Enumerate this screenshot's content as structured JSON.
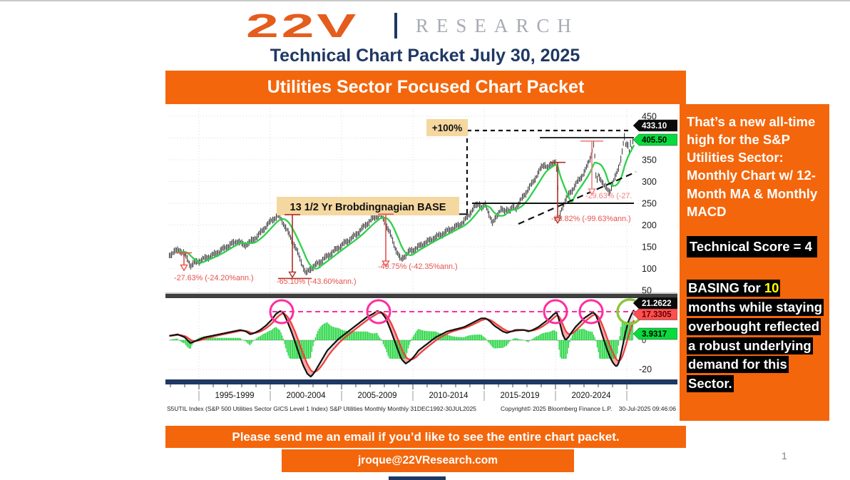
{
  "header": {
    "logo_left": "22V",
    "logo_divider": "|",
    "logo_right": "RESEARCH",
    "packet_title": "Technical Chart Packet July 30, 2025",
    "section_banner": "Utilities Sector Focused Chart Packet"
  },
  "sidebar": {
    "note": "That’s a new all-time high for the S&P Utilities Sector: Monthly Chart w/ 12-Month MA & Monthly MACD",
    "technical_score": "Technical Score = 4",
    "basing_pre": "BASING for ",
    "basing_highlight": "10",
    "basing_post": " months while staying overbought reflected a robust underlying demand for this Sector."
  },
  "footer": {
    "cta": "Please send me an email if you’d like to see the entire chart packet.",
    "email": "jroque@22VResearch.com",
    "page_number": "1"
  },
  "chart_data": {
    "type": "line",
    "description": "S&P 500 Utilities Sector monthly price with 12-month moving average (top panel) and monthly MACD with signal line and green histogram (bottom panel)",
    "price_axis_ticks": [
      450,
      350,
      300,
      250,
      200,
      150,
      100,
      50
    ],
    "macd_axis_ticks": [
      0,
      -20
    ],
    "x_labels": [
      "1995-1999",
      "2000-2004",
      "2005-2009",
      "2010-2014",
      "2015-2019",
      "2020-2024"
    ],
    "x_range": [
      "31DEC1992",
      "30JUL2025"
    ],
    "tags": {
      "last_price": "433.10",
      "ma_12m": "405.50",
      "macd": "21.2622",
      "macd_signal": "17.3305",
      "macd_hist": "3.9317"
    },
    "annotations": {
      "measured_move": "+100%",
      "base_label": "13 1/2 Yr Brobdingnagian BASE",
      "drawdowns": [
        "-27.63% (-24.20%ann.)",
        "-65.10% (-43.60%ann.)",
        "-49.75% (-42.35%ann.)",
        "-38.82% (-99.63%ann.)",
        "-29.63% (-27."
      ],
      "overbought_circles_pink_years": [
        2000.8,
        2007.6,
        2020.0,
        2022.5
      ],
      "breakout_circle_green_year": 2025.2
    },
    "source_line": "S5UTIL Index (S&P 500 Utilities Sector GICS Level 1 Index) S&P Utilities Monthly  Monthly 31DEC1992-30JUL2025",
    "copyright_line": "Copyright© 2025 Bloomberg Finance L.P.",
    "timestamp": "30-Jul-2025 09:46:06",
    "series": {
      "price": [
        [
          1992.92,
          130
        ],
        [
          1993.25,
          139
        ],
        [
          1993.65,
          142
        ],
        [
          1993.95,
          135
        ],
        [
          1994.2,
          120
        ],
        [
          1994.42,
          107
        ],
        [
          1994.75,
          114
        ],
        [
          1995.15,
          119
        ],
        [
          1995.55,
          125
        ],
        [
          1995.95,
          130
        ],
        [
          1996.4,
          139
        ],
        [
          1996.85,
          148
        ],
        [
          1997.3,
          157
        ],
        [
          1997.75,
          163
        ],
        [
          1998.15,
          153
        ],
        [
          1998.55,
          160
        ],
        [
          1998.95,
          170
        ],
        [
          1999.35,
          183
        ],
        [
          1999.75,
          199
        ],
        [
          2000.15,
          212
        ],
        [
          2000.55,
          222
        ],
        [
          2000.8,
          212
        ],
        [
          2001.05,
          196
        ],
        [
          2001.35,
          176
        ],
        [
          2001.65,
          157
        ],
        [
          2001.95,
          134
        ],
        [
          2002.25,
          109
        ],
        [
          2002.5,
          88
        ],
        [
          2002.8,
          99
        ],
        [
          2003.15,
          107
        ],
        [
          2003.55,
          117
        ],
        [
          2003.95,
          127
        ],
        [
          2004.35,
          137
        ],
        [
          2004.75,
          147
        ],
        [
          2005.15,
          157
        ],
        [
          2005.55,
          166
        ],
        [
          2005.95,
          176
        ],
        [
          2006.35,
          189
        ],
        [
          2006.75,
          202
        ],
        [
          2007.15,
          214
        ],
        [
          2007.45,
          220
        ],
        [
          2007.7,
          224
        ],
        [
          2007.95,
          212
        ],
        [
          2008.2,
          196
        ],
        [
          2008.45,
          176
        ],
        [
          2008.7,
          153
        ],
        [
          2008.95,
          134
        ],
        [
          2009.15,
          119
        ],
        [
          2009.45,
          130
        ],
        [
          2009.75,
          139
        ],
        [
          2010.05,
          143
        ],
        [
          2010.4,
          150
        ],
        [
          2010.75,
          157
        ],
        [
          2011.1,
          163
        ],
        [
          2011.45,
          170
        ],
        [
          2011.8,
          175
        ],
        [
          2012.15,
          181
        ],
        [
          2012.5,
          188
        ],
        [
          2012.85,
          193
        ],
        [
          2013.2,
          199
        ],
        [
          2013.55,
          207
        ],
        [
          2013.85,
          220
        ],
        [
          2014.15,
          234
        ],
        [
          2014.45,
          245
        ],
        [
          2014.65,
          250
        ],
        [
          2014.85,
          238
        ],
        [
          2015.05,
          248
        ],
        [
          2015.25,
          235
        ],
        [
          2015.45,
          216
        ],
        [
          2015.6,
          202
        ],
        [
          2015.8,
          216
        ],
        [
          2016.0,
          229
        ],
        [
          2016.2,
          237
        ],
        [
          2016.4,
          229
        ],
        [
          2016.6,
          238
        ],
        [
          2016.8,
          232
        ],
        [
          2017.0,
          242
        ],
        [
          2017.2,
          237
        ],
        [
          2017.4,
          248
        ],
        [
          2017.6,
          258
        ],
        [
          2017.8,
          268
        ],
        [
          2018.0,
          278
        ],
        [
          2018.2,
          288
        ],
        [
          2018.4,
          297
        ],
        [
          2018.6,
          309
        ],
        [
          2018.8,
          320
        ],
        [
          2019.05,
          334
        ],
        [
          2019.25,
          340
        ],
        [
          2019.45,
          330
        ],
        [
          2019.65,
          336
        ],
        [
          2019.85,
          344
        ],
        [
          2020.05,
          348
        ],
        [
          2020.15,
          300
        ],
        [
          2020.25,
          213
        ],
        [
          2020.45,
          240
        ],
        [
          2020.7,
          258
        ],
        [
          2020.95,
          270
        ],
        [
          2021.2,
          282
        ],
        [
          2021.45,
          295
        ],
        [
          2021.7,
          305
        ],
        [
          2021.95,
          318
        ],
        [
          2022.2,
          333
        ],
        [
          2022.45,
          355
        ],
        [
          2022.6,
          375
        ],
        [
          2022.7,
          392
        ],
        [
          2022.78,
          340
        ],
        [
          2022.87,
          295
        ],
        [
          2023.0,
          315
        ],
        [
          2023.2,
          305
        ],
        [
          2023.4,
          290
        ],
        [
          2023.6,
          283
        ],
        [
          2023.8,
          276
        ],
        [
          2024.0,
          295
        ],
        [
          2024.2,
          310
        ],
        [
          2024.4,
          330
        ],
        [
          2024.6,
          355
        ],
        [
          2024.75,
          385
        ],
        [
          2024.85,
          403
        ],
        [
          2024.95,
          375
        ],
        [
          2025.05,
          395
        ],
        [
          2025.15,
          368
        ],
        [
          2025.25,
          390
        ],
        [
          2025.35,
          372
        ],
        [
          2025.45,
          398
        ],
        [
          2025.55,
          433
        ]
      ],
      "macd": [
        [
          1992.92,
          3
        ],
        [
          1993.5,
          4
        ],
        [
          1994.0,
          2
        ],
        [
          1994.4,
          -2
        ],
        [
          1994.9,
          0
        ],
        [
          1995.4,
          2
        ],
        [
          1995.9,
          3
        ],
        [
          1996.4,
          4
        ],
        [
          1996.9,
          5
        ],
        [
          1997.4,
          6
        ],
        [
          1997.9,
          7
        ],
        [
          1998.3,
          6
        ],
        [
          1998.6,
          4
        ],
        [
          1998.9,
          5
        ],
        [
          1999.3,
          7
        ],
        [
          1999.7,
          10
        ],
        [
          2000.1,
          14
        ],
        [
          2000.4,
          18
        ],
        [
          2000.7,
          20
        ],
        [
          2000.9,
          19
        ],
        [
          2001.1,
          15
        ],
        [
          2001.4,
          8
        ],
        [
          2001.7,
          0
        ],
        [
          2002.0,
          -9
        ],
        [
          2002.3,
          -17
        ],
        [
          2002.6,
          -23
        ],
        [
          2002.85,
          -25
        ],
        [
          2003.1,
          -22
        ],
        [
          2003.4,
          -17
        ],
        [
          2003.7,
          -12
        ],
        [
          2004.0,
          -7
        ],
        [
          2004.4,
          -3
        ],
        [
          2004.8,
          1
        ],
        [
          2005.2,
          4
        ],
        [
          2005.6,
          7
        ],
        [
          2006.0,
          10
        ],
        [
          2006.4,
          13
        ],
        [
          2006.8,
          16
        ],
        [
          2007.2,
          18
        ],
        [
          2007.5,
          20
        ],
        [
          2007.8,
          19
        ],
        [
          2008.1,
          15
        ],
        [
          2008.4,
          8
        ],
        [
          2008.7,
          0
        ],
        [
          2009.0,
          -8
        ],
        [
          2009.2,
          -13
        ],
        [
          2009.5,
          -16
        ],
        [
          2009.8,
          -14
        ],
        [
          2010.1,
          -11
        ],
        [
          2010.4,
          -7
        ],
        [
          2010.8,
          -4
        ],
        [
          2011.2,
          -1
        ],
        [
          2011.6,
          2
        ],
        [
          2012.0,
          4
        ],
        [
          2012.4,
          6
        ],
        [
          2012.8,
          7
        ],
        [
          2013.2,
          8
        ],
        [
          2013.6,
          9
        ],
        [
          2014.0,
          11
        ],
        [
          2014.4,
          13
        ],
        [
          2014.8,
          15
        ],
        [
          2015.1,
          15
        ],
        [
          2015.4,
          13
        ],
        [
          2015.7,
          10
        ],
        [
          2016.0,
          8
        ],
        [
          2016.3,
          6
        ],
        [
          2016.6,
          5
        ],
        [
          2016.9,
          6
        ],
        [
          2017.2,
          7
        ],
        [
          2017.5,
          7
        ],
        [
          2017.8,
          7
        ],
        [
          2018.1,
          6
        ],
        [
          2018.4,
          7
        ],
        [
          2018.8,
          9
        ],
        [
          2019.2,
          12
        ],
        [
          2019.6,
          15
        ],
        [
          2019.9,
          18
        ],
        [
          2020.1,
          19
        ],
        [
          2020.3,
          12
        ],
        [
          2020.5,
          4
        ],
        [
          2020.7,
          0
        ],
        [
          2020.9,
          2
        ],
        [
          2021.1,
          5
        ],
        [
          2021.4,
          9
        ],
        [
          2021.7,
          12
        ],
        [
          2022.0,
          15
        ],
        [
          2022.3,
          17
        ],
        [
          2022.6,
          19
        ],
        [
          2022.8,
          18
        ],
        [
          2023.0,
          13
        ],
        [
          2023.2,
          6
        ],
        [
          2023.4,
          0
        ],
        [
          2023.6,
          -6
        ],
        [
          2023.8,
          -11
        ],
        [
          2024.0,
          -15
        ],
        [
          2024.15,
          -17
        ],
        [
          2024.3,
          -18
        ],
        [
          2024.45,
          -15
        ],
        [
          2024.6,
          -9
        ],
        [
          2024.75,
          -2
        ],
        [
          2024.9,
          5
        ],
        [
          2025.05,
          11
        ],
        [
          2025.2,
          15
        ],
        [
          2025.35,
          18
        ],
        [
          2025.45,
          20
        ],
        [
          2025.55,
          21.3
        ]
      ]
    },
    "colors": {
      "orange": "#F4660B",
      "navy": "#1F3864",
      "ma_green": "#2ED04B",
      "hist_green": "#00CF22",
      "tag_green": "#07DC3C",
      "tag_red": "#FF4F4F",
      "annotation_red": "#E8504F",
      "annotation_dark_red": "#A93226",
      "pink": "#FF2DA0",
      "circle_green": "#8DC63F",
      "tan": "#F5D7A0"
    }
  }
}
